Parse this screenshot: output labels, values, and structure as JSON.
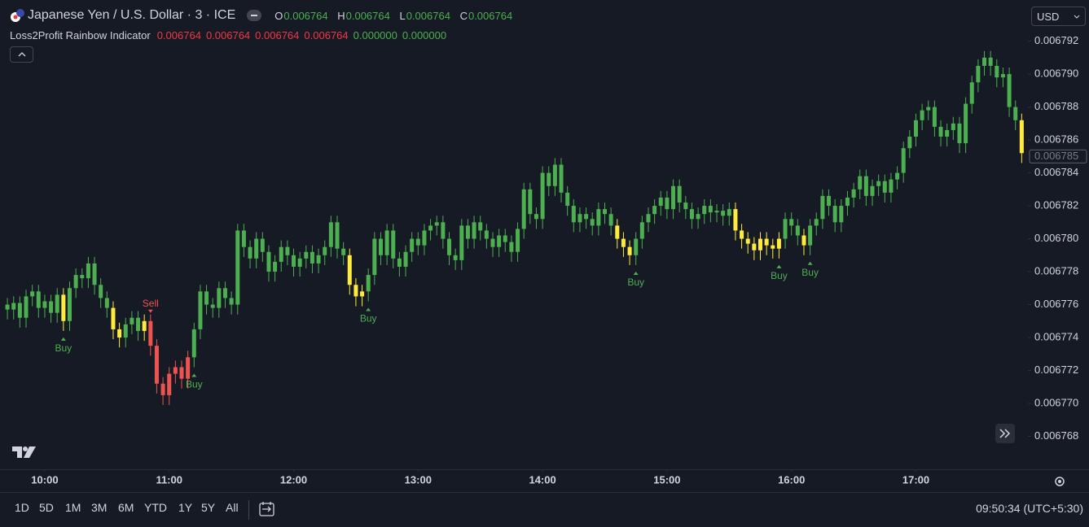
{
  "header": {
    "symbol": "Japanese Yen / U.S. Dollar · 3 · ICE",
    "ohlc": [
      {
        "key": "O",
        "value": "0.006764"
      },
      {
        "key": "H",
        "value": "0.006764"
      },
      {
        "key": "L",
        "value": "0.006764"
      },
      {
        "key": "C",
        "value": "0.006764"
      }
    ],
    "indicator": {
      "name": "Loss2Profit Rainbow Indicator",
      "values": [
        "0.006764",
        "0.006764",
        "0.006764",
        "0.006764",
        "0.000000",
        "0.000000"
      ]
    },
    "currency": "USD"
  },
  "toolbar": {
    "ranges": [
      "1D",
      "5D",
      "1M",
      "3M",
      "6M",
      "YTD",
      "1Y",
      "5Y",
      "All"
    ],
    "clock": "09:50:34 (UTC+5:30)"
  },
  "chart_data": {
    "type": "candlestick",
    "xlim": [
      580,
      1074
    ],
    "xticks": [
      {
        "value": 600,
        "label": "10:00"
      },
      {
        "value": 660,
        "label": "11:00"
      },
      {
        "value": 720,
        "label": "12:00"
      },
      {
        "value": 780,
        "label": "13:00"
      },
      {
        "value": 840,
        "label": "14:00"
      },
      {
        "value": 900,
        "label": "15:00"
      },
      {
        "value": 960,
        "label": "16:00"
      },
      {
        "value": 1020,
        "label": "17:00"
      }
    ],
    "ylim": [
      0.006766,
      0.0067945
    ],
    "yticks": [
      0.006768,
      {
        "value": 0.00677,
        "label": "0.006770"
      },
      0.006772,
      0.006774,
      0.006776,
      0.006778,
      {
        "value": 0.00678,
        "label": "0.006780"
      },
      0.006782,
      0.006784,
      0.006786,
      0.006788,
      {
        "value": 0.00679,
        "label": "0.006790"
      },
      0.006792
    ],
    "last_price": 0.006785,
    "x": [
      582,
      585,
      588,
      591,
      594,
      597,
      600,
      603,
      606,
      609,
      612,
      615,
      618,
      621,
      624,
      627,
      630,
      633,
      636,
      639,
      642,
      645,
      648,
      651,
      654,
      657,
      660,
      663,
      666,
      669,
      672,
      675,
      678,
      681,
      684,
      687,
      690,
      693,
      696,
      699,
      702,
      705,
      708,
      711,
      714,
      717,
      720,
      723,
      726,
      729,
      732,
      735,
      738,
      741,
      744,
      747,
      750,
      753,
      756,
      759,
      762,
      765,
      768,
      771,
      774,
      777,
      780,
      783,
      786,
      789,
      792,
      795,
      798,
      801,
      804,
      807,
      810,
      813,
      816,
      819,
      822,
      825,
      828,
      831,
      834,
      837,
      840,
      843,
      846,
      849,
      852,
      855,
      858,
      861,
      864,
      867,
      870,
      873,
      876,
      879,
      882,
      885,
      888,
      891,
      894,
      897,
      900,
      903,
      906,
      909,
      912,
      915,
      918,
      921,
      924,
      927,
      930,
      933,
      936,
      939,
      942,
      945,
      948,
      951,
      954,
      957,
      960,
      963,
      966,
      969,
      972,
      975,
      978,
      981,
      984,
      987,
      990,
      993,
      996,
      999,
      1002,
      1005,
      1008,
      1011,
      1014,
      1017,
      1020,
      1023,
      1026,
      1029,
      1032,
      1035,
      1038,
      1041,
      1044,
      1047,
      1050,
      1053,
      1056,
      1059,
      1062,
      1065,
      1068,
      1071
    ],
    "open": [
      0.006776,
      0.0067757,
      0.0067761,
      0.0067752,
      0.0067765,
      0.0067768,
      0.0067758,
      0.0067762,
      0.0067755,
      0.0067766,
      0.006775,
      0.006777,
      0.0067778,
      0.0067776,
      0.0067785,
      0.0067772,
      0.0067764,
      0.0067758,
      0.0067745,
      0.006774,
      0.0067748,
      0.0067752,
      0.0067744,
      0.006775,
      0.0067735,
      0.0067712,
      0.0067705,
      0.0067718,
      0.0067722,
      0.0067715,
      0.0067728,
      0.0067745,
      0.0067768,
      0.006776,
      0.0067758,
      0.006777,
      0.0067764,
      0.006776,
      0.0067805,
      0.0067795,
      0.0067788,
      0.00678,
      0.0067792,
      0.006778,
      0.0067786,
      0.0067795,
      0.006779,
      0.0067783,
      0.0067788,
      0.0067792,
      0.0067785,
      0.006779,
      0.0067795,
      0.006781,
      0.0067794,
      0.006779,
      0.0067772,
      0.0067765,
      0.0067768,
      0.0067778,
      0.00678,
      0.006779,
      0.0067805,
      0.0067788,
      0.0067783,
      0.0067792,
      0.00678,
      0.0067796,
      0.0067805,
      0.0067808,
      0.006781,
      0.00678,
      0.006779,
      0.0067787,
      0.0067808,
      0.00678,
      0.006781,
      0.0067805,
      0.00678,
      0.0067795,
      0.0067802,
      0.0067798,
      0.0067792,
      0.0067806,
      0.006783,
      0.0067815,
      0.0067812,
      0.006784,
      0.0067832,
      0.0067845,
      0.0067828,
      0.006782,
      0.006781,
      0.0067815,
      0.0067812,
      0.0067808,
      0.0067818,
      0.0067815,
      0.0067808,
      0.00678,
      0.0067795,
      0.006779,
      0.00678,
      0.006781,
      0.0067815,
      0.006782,
      0.0067825,
      0.0067818,
      0.0067832,
      0.0067822,
      0.0067818,
      0.0067812,
      0.0067815,
      0.006782,
      0.0067816,
      0.0067817,
      0.0067814,
      0.0067818,
      0.0067805,
      0.00678,
      0.0067797,
      0.0067793,
      0.00678,
      0.0067796,
      0.0067794,
      0.00678,
      0.0067812,
      0.0067808,
      0.0067802,
      0.0067796,
      0.0067808,
      0.0067812,
      0.0067826,
      0.006782,
      0.006781,
      0.006782,
      0.0067825,
      0.006783,
      0.0067838,
      0.0067826,
      0.0067832,
      0.0067835,
      0.0067828,
      0.0067836,
      0.006784,
      0.0067855,
      0.0067862,
      0.0067872,
      0.0067878,
      0.006788,
      0.0067868,
      0.0067862,
      0.0067866,
      0.006787,
      0.0067858,
      0.0067882,
      0.0067895,
      0.0067905,
      0.006791,
      0.0067905,
      0.0067898,
      0.00679,
      0.006788,
      0.0067872
    ],
    "high": [
      0.0067764,
      0.0067765,
      0.0067765,
      0.0067769,
      0.0067772,
      0.0067772,
      0.0067766,
      0.0067766,
      0.006777,
      0.006777,
      0.0067774,
      0.0067782,
      0.0067782,
      0.0067789,
      0.0067789,
      0.0067776,
      0.0067768,
      0.0067762,
      0.0067749,
      0.0067752,
      0.0067756,
      0.0067756,
      0.0067754,
      0.0067754,
      0.0067739,
      0.0067716,
      0.0067722,
      0.0067726,
      0.0067726,
      0.0067732,
      0.0067749,
      0.0067772,
      0.0067772,
      0.0067764,
      0.0067774,
      0.0067774,
      0.0067768,
      0.0067809,
      0.0067809,
      0.0067799,
      0.0067804,
      0.0067804,
      0.0067796,
      0.006779,
      0.0067799,
      0.0067799,
      0.0067794,
      0.0067792,
      0.0067796,
      0.0067796,
      0.0067794,
      0.0067799,
      0.0067814,
      0.0067814,
      0.0067798,
      0.0067794,
      0.0067776,
      0.0067772,
      0.0067782,
      0.0067804,
      0.0067804,
      0.0067809,
      0.0067809,
      0.0067792,
      0.0067796,
      0.0067804,
      0.0067804,
      0.0067809,
      0.0067812,
      0.0067814,
      0.0067814,
      0.0067804,
      0.0067794,
      0.0067812,
      0.0067812,
      0.0067814,
      0.0067814,
      0.0067809,
      0.0067804,
      0.0067806,
      0.0067806,
      0.0067802,
      0.006781,
      0.0067834,
      0.0067834,
      0.0067819,
      0.0067844,
      0.0067844,
      0.0067849,
      0.0067849,
      0.0067832,
      0.0067824,
      0.0067819,
      0.0067819,
      0.0067816,
      0.0067822,
      0.0067822,
      0.0067819,
      0.0067812,
      0.0067804,
      0.0067799,
      0.0067804,
      0.0067814,
      0.0067819,
      0.0067824,
      0.0067829,
      0.0067829,
      0.0067836,
      0.0067836,
      0.0067826,
      0.0067822,
      0.0067819,
      0.0067824,
      0.0067824,
      0.0067821,
      0.0067821,
      0.0067822,
      0.0067822,
      0.0067809,
      0.0067804,
      0.0067801,
      0.0067804,
      0.0067804,
      0.00678,
      0.0067804,
      0.0067816,
      0.0067816,
      0.0067812,
      0.0067806,
      0.0067812,
      0.0067816,
      0.006783,
      0.006783,
      0.0067824,
      0.0067824,
      0.0067829,
      0.0067834,
      0.0067842,
      0.0067842,
      0.0067836,
      0.0067839,
      0.0067839,
      0.006784,
      0.0067844,
      0.0067859,
      0.0067866,
      0.0067876,
      0.0067882,
      0.0067884,
      0.0067884,
      0.0067872,
      0.006787,
      0.0067874,
      0.0067874,
      0.0067886,
      0.0067899,
      0.0067909,
      0.0067914,
      0.0067914,
      0.0067909,
      0.0067904,
      0.0067904,
      0.0067884,
      0.0067876
    ],
    "low": [
      0.0067751,
      0.0067751,
      0.0067746,
      0.0067746,
      0.0067759,
      0.0067752,
      0.0067752,
      0.0067749,
      0.0067749,
      0.0067744,
      0.0067744,
      0.0067764,
      0.006777,
      0.006777,
      0.0067766,
      0.0067758,
      0.0067752,
      0.0067739,
      0.0067734,
      0.0067734,
      0.0067742,
      0.0067738,
      0.0067738,
      0.0067729,
      0.0067706,
      0.0067699,
      0.0067699,
      0.0067712,
      0.0067709,
      0.0067709,
      0.0067722,
      0.0067739,
      0.0067754,
      0.0067752,
      0.0067752,
      0.0067758,
      0.0067754,
      0.0067754,
      0.0067789,
      0.0067782,
      0.0067782,
      0.0067786,
      0.0067774,
      0.0067774,
      0.006778,
      0.0067784,
      0.0067777,
      0.0067777,
      0.0067782,
      0.0067779,
      0.0067779,
      0.0067784,
      0.0067789,
      0.0067788,
      0.0067784,
      0.0067766,
      0.0067759,
      0.0067759,
      0.0067762,
      0.0067772,
      0.0067784,
      0.0067784,
      0.0067782,
      0.0067777,
      0.0067777,
      0.0067786,
      0.006779,
      0.006779,
      0.0067799,
      0.0067802,
      0.0067794,
      0.0067784,
      0.0067781,
      0.0067781,
      0.0067794,
      0.0067794,
      0.0067799,
      0.0067794,
      0.0067789,
      0.0067789,
      0.0067792,
      0.0067786,
      0.0067786,
      0.00678,
      0.0067809,
      0.0067806,
      0.0067806,
      0.0067826,
      0.0067826,
      0.0067822,
      0.0067814,
      0.0067804,
      0.0067804,
      0.0067806,
      0.0067802,
      0.0067802,
      0.0067809,
      0.0067802,
      0.0067794,
      0.0067789,
      0.0067784,
      0.0067784,
      0.0067794,
      0.0067804,
      0.0067809,
      0.0067814,
      0.0067812,
      0.0067812,
      0.0067816,
      0.0067812,
      0.0067806,
      0.0067806,
      0.0067809,
      0.006781,
      0.006781,
      0.0067808,
      0.0067808,
      0.0067799,
      0.0067794,
      0.0067791,
      0.0067787,
      0.0067787,
      0.006779,
      0.0067788,
      0.0067788,
      0.0067794,
      0.0067802,
      0.0067796,
      0.006779,
      0.006779,
      0.0067802,
      0.0067806,
      0.0067814,
      0.0067804,
      0.0067804,
      0.0067814,
      0.0067819,
      0.0067824,
      0.006782,
      0.006782,
      0.0067826,
      0.0067822,
      0.0067822,
      0.006783,
      0.0067834,
      0.0067849,
      0.0067856,
      0.0067866,
      0.0067872,
      0.0067862,
      0.0067856,
      0.0067856,
      0.006786,
      0.0067852,
      0.0067852,
      0.0067876,
      0.0067889,
      0.0067899,
      0.0067899,
      0.0067892,
      0.0067892,
      0.0067874,
      0.0067866,
      0.0067846
    ],
    "close": [
      0.0067757,
      0.0067761,
      0.0067752,
      0.0067765,
      0.0067768,
      0.0067758,
      0.0067762,
      0.0067755,
      0.0067766,
      0.006775,
      0.006777,
      0.0067778,
      0.0067776,
      0.0067785,
      0.0067772,
      0.0067764,
      0.0067758,
      0.0067745,
      0.006774,
      0.0067748,
      0.0067752,
      0.0067744,
      0.006775,
      0.0067735,
      0.0067712,
      0.0067705,
      0.0067718,
      0.0067722,
      0.0067715,
      0.0067728,
      0.0067745,
      0.0067768,
      0.006776,
      0.0067758,
      0.006777,
      0.0067764,
      0.006776,
      0.0067805,
      0.0067795,
      0.0067788,
      0.00678,
      0.0067792,
      0.006778,
      0.0067786,
      0.0067795,
      0.006779,
      0.0067783,
      0.0067788,
      0.0067792,
      0.0067785,
      0.006779,
      0.0067795,
      0.006781,
      0.0067794,
      0.006779,
      0.0067772,
      0.0067765,
      0.0067768,
      0.0067778,
      0.00678,
      0.006779,
      0.0067805,
      0.0067788,
      0.0067783,
      0.0067792,
      0.00678,
      0.0067796,
      0.0067805,
      0.0067808,
      0.006781,
      0.00678,
      0.006779,
      0.0067787,
      0.0067808,
      0.00678,
      0.006781,
      0.0067805,
      0.00678,
      0.0067795,
      0.0067802,
      0.0067798,
      0.0067792,
      0.0067806,
      0.006783,
      0.0067815,
      0.0067812,
      0.006784,
      0.0067832,
      0.0067845,
      0.0067828,
      0.006782,
      0.006781,
      0.0067815,
      0.0067812,
      0.0067808,
      0.0067818,
      0.0067815,
      0.0067808,
      0.00678,
      0.0067795,
      0.006779,
      0.00678,
      0.006781,
      0.0067815,
      0.006782,
      0.0067825,
      0.0067818,
      0.0067832,
      0.0067822,
      0.0067818,
      0.0067812,
      0.0067815,
      0.006782,
      0.0067816,
      0.0067817,
      0.0067814,
      0.0067818,
      0.0067805,
      0.00678,
      0.0067797,
      0.0067793,
      0.00678,
      0.0067796,
      0.0067794,
      0.00678,
      0.0067812,
      0.0067808,
      0.0067802,
      0.0067796,
      0.0067808,
      0.0067812,
      0.0067826,
      0.006782,
      0.006781,
      0.006782,
      0.0067825,
      0.006783,
      0.0067838,
      0.0067826,
      0.0067832,
      0.0067835,
      0.0067828,
      0.0067836,
      0.006784,
      0.0067855,
      0.0067862,
      0.0067872,
      0.0067878,
      0.006788,
      0.0067868,
      0.0067862,
      0.0067866,
      0.006787,
      0.0067858,
      0.0067882,
      0.0067895,
      0.0067905,
      0.006791,
      0.0067905,
      0.0067898,
      0.00679,
      0.006788,
      0.0067872,
      0.0067852
    ],
    "colors": [
      "#4caf50",
      "#4caf50",
      "#4caf50",
      "#4caf50",
      "#4caf50",
      "#4caf50",
      "#4caf50",
      "#4caf50",
      "#4caf50",
      "#ffeb3b",
      "#4caf50",
      "#4caf50",
      "#4caf50",
      "#4caf50",
      "#4caf50",
      "#4caf50",
      "#4caf50",
      "#ffeb3b",
      "#ffeb3b",
      "#4caf50",
      "#4caf50",
      "#4caf50",
      "#ffeb3b",
      "#ef5350",
      "#ef5350",
      "#ef5350",
      "#ef5350",
      "#ef5350",
      "#ef5350",
      "#ef5350",
      "#4caf50",
      "#4caf50",
      "#4caf50",
      "#4caf50",
      "#4caf50",
      "#4caf50",
      "#4caf50",
      "#4caf50",
      "#4caf50",
      "#4caf50",
      "#4caf50",
      "#4caf50",
      "#4caf50",
      "#4caf50",
      "#4caf50",
      "#4caf50",
      "#4caf50",
      "#4caf50",
      "#4caf50",
      "#4caf50",
      "#4caf50",
      "#4caf50",
      "#4caf50",
      "#4caf50",
      "#4caf50",
      "#ffeb3b",
      "#ffeb3b",
      "#ffeb3b",
      "#4caf50",
      "#4caf50",
      "#4caf50",
      "#4caf50",
      "#4caf50",
      "#4caf50",
      "#4caf50",
      "#4caf50",
      "#4caf50",
      "#4caf50",
      "#4caf50",
      "#4caf50",
      "#4caf50",
      "#4caf50",
      "#4caf50",
      "#4caf50",
      "#4caf50",
      "#4caf50",
      "#4caf50",
      "#4caf50",
      "#4caf50",
      "#4caf50",
      "#4caf50",
      "#4caf50",
      "#4caf50",
      "#4caf50",
      "#4caf50",
      "#4caf50",
      "#4caf50",
      "#4caf50",
      "#4caf50",
      "#4caf50",
      "#4caf50",
      "#4caf50",
      "#4caf50",
      "#4caf50",
      "#4caf50",
      "#4caf50",
      "#4caf50",
      "#4caf50",
      "#ffeb3b",
      "#ffeb3b",
      "#ffeb3b",
      "#4caf50",
      "#4caf50",
      "#4caf50",
      "#4caf50",
      "#4caf50",
      "#4caf50",
      "#4caf50",
      "#4caf50",
      "#4caf50",
      "#4caf50",
      "#4caf50",
      "#4caf50",
      "#4caf50",
      "#4caf50",
      "#4caf50",
      "#4caf50",
      "#ffeb3b",
      "#ffeb3b",
      "#ffeb3b",
      "#ffeb3b",
      "#ffeb3b",
      "#ffeb3b",
      "#ffeb3b",
      "#ffeb3b",
      "#4caf50",
      "#4caf50",
      "#4caf50",
      "#ffeb3b",
      "#4caf50",
      "#4caf50",
      "#4caf50",
      "#4caf50",
      "#4caf50",
      "#4caf50",
      "#4caf50",
      "#4caf50",
      "#4caf50",
      "#4caf50",
      "#4caf50",
      "#4caf50",
      "#4caf50",
      "#4caf50",
      "#4caf50",
      "#4caf50",
      "#4caf50",
      "#4caf50",
      "#4caf50",
      "#4caf50",
      "#4caf50",
      "#4caf50",
      "#4caf50",
      "#4caf50",
      "#4caf50",
      "#4caf50",
      "#4caf50",
      "#4caf50",
      "#4caf50",
      "#4caf50",
      "#4caf50",
      "#4caf50",
      "#4caf50",
      "#4caf50",
      "#ffeb3b"
    ],
    "signals": [
      {
        "text": "Buy",
        "x": 609,
        "color": "#4caf50"
      },
      {
        "text": "Sell",
        "x": 651,
        "color": "#ef5350"
      },
      {
        "text": "Buy",
        "x": 672,
        "color": "#4caf50"
      },
      {
        "text": "Buy",
        "x": 756,
        "color": "#4caf50"
      },
      {
        "text": "Buy",
        "x": 885,
        "color": "#4caf50"
      },
      {
        "text": "Buy",
        "x": 954,
        "color": "#4caf50"
      },
      {
        "text": "Buy",
        "x": 969,
        "color": "#4caf50"
      }
    ]
  }
}
